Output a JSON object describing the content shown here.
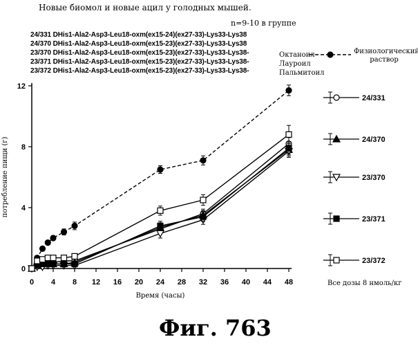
{
  "header": {
    "title": "Новые биомол и новые ацил у голодных мышей.",
    "group_note": "n=9-10 в группе"
  },
  "compounds": [
    {
      "code": "24/331 DHis1-Ala2-Asp3-Leu18-oxm(ex15-24)(ex27-33)-Lys33-Lys38",
      "acyl": ""
    },
    {
      "code": "24/370 DHis1-Ala2-Asp3-Leu18-oxm(ex15-23)(ex27-33)-Lys33-Lys38",
      "acyl": ""
    },
    {
      "code": "23/370 DHis1-Ala2-Asp3-Leu18-oxm(ex15-23)(ex27-33)-Lys33-Lys38-",
      "acyl": "Октаноил"
    },
    {
      "code": "23/371 DHis1-Ala2-Asp3-Leu18-oxm(ex15-23)(ex27-33)-Lys33-Lys38-",
      "acyl": "Лауроил"
    },
    {
      "code": "23/372 DHis1-Ala2-Asp3-Leu18-oxm(ex15-23)(ex27-33)-Lys33-Lys38-",
      "acyl": "Пальмитоил"
    }
  ],
  "footer": {
    "dose_note": "Все дозы 8 нмоль/кг",
    "figure_label": "Фиг.  763"
  },
  "chart_data": {
    "type": "line",
    "title": "Новые биомол и новые ацил у голодных мышей.",
    "xlabel": "Время (часы)",
    "ylabel": "потребление пищи (г)",
    "xlim": [
      0,
      48
    ],
    "ylim": [
      0,
      12
    ],
    "x_ticks": [
      0,
      4,
      8,
      12,
      16,
      20,
      24,
      28,
      32,
      36,
      40,
      44,
      48
    ],
    "y_ticks": [
      0,
      4,
      8,
      12
    ],
    "x": [
      0,
      1,
      2,
      3,
      4,
      6,
      8,
      24,
      32,
      48
    ],
    "grid": false,
    "legend_position": "right",
    "series": [
      {
        "name": "Физиологический раствор",
        "marker": "filled-circle",
        "dashed": true,
        "color": "#000000",
        "values": [
          0,
          0.7,
          1.3,
          1.7,
          2.0,
          2.4,
          2.8,
          6.5,
          7.1,
          11.7
        ],
        "errors": [
          0.1,
          0.1,
          0.15,
          0.15,
          0.15,
          0.2,
          0.25,
          0.25,
          0.3,
          0.35
        ]
      },
      {
        "name": "24/331",
        "marker": "open-circle",
        "dashed": false,
        "color": "#000000",
        "values": [
          0,
          0.3,
          0.4,
          0.4,
          0.4,
          0.5,
          0.5,
          2.6,
          3.6,
          8.2
        ],
        "errors": [
          0.05,
          0.1,
          0.1,
          0.1,
          0.1,
          0.1,
          0.1,
          0.3,
          0.3,
          0.4
        ]
      },
      {
        "name": "24/370",
        "marker": "filled-triangle",
        "dashed": false,
        "color": "#000000",
        "values": [
          0,
          0.2,
          0.3,
          0.3,
          0.3,
          0.3,
          0.4,
          2.7,
          3.5,
          7.8
        ],
        "errors": [
          0.05,
          0.1,
          0.1,
          0.1,
          0.1,
          0.1,
          0.1,
          0.3,
          0.3,
          0.4
        ]
      },
      {
        "name": "23/370",
        "marker": "open-triangle",
        "dashed": false,
        "color": "#000000",
        "values": [
          0,
          0.1,
          0.1,
          0.2,
          0.2,
          0.2,
          0.2,
          2.3,
          3.2,
          7.7
        ],
        "errors": [
          0.05,
          0.05,
          0.05,
          0.05,
          0.05,
          0.1,
          0.1,
          0.3,
          0.3,
          0.4
        ]
      },
      {
        "name": "23/371",
        "marker": "filled-square",
        "dashed": false,
        "color": "#000000",
        "values": [
          0,
          0.2,
          0.3,
          0.3,
          0.3,
          0.3,
          0.3,
          2.8,
          3.4,
          7.9
        ],
        "errors": [
          0.05,
          0.1,
          0.1,
          0.1,
          0.1,
          0.1,
          0.1,
          0.3,
          0.3,
          0.4
        ]
      },
      {
        "name": "23/372",
        "marker": "open-square",
        "dashed": false,
        "color": "#000000",
        "values": [
          0,
          0.5,
          0.6,
          0.7,
          0.7,
          0.7,
          0.8,
          3.8,
          4.5,
          8.8
        ],
        "errors": [
          0.1,
          0.1,
          0.1,
          0.1,
          0.1,
          0.1,
          0.1,
          0.3,
          0.35,
          0.6
        ]
      }
    ]
  }
}
